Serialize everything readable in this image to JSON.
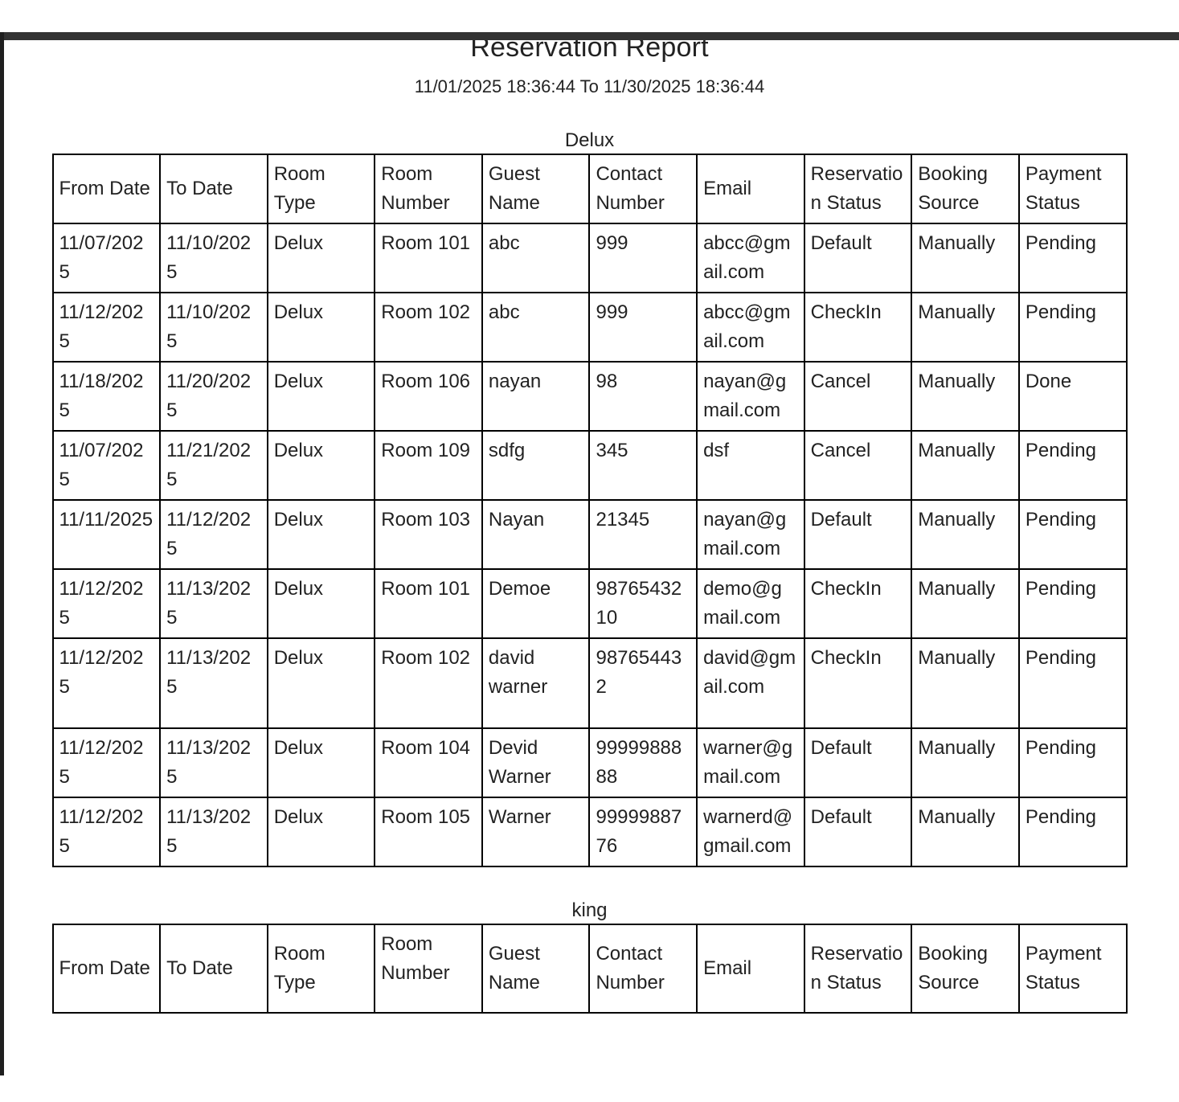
{
  "report": {
    "title": "Reservation Report",
    "date_range": "11/01/2025 18:36:44 To 11/30/2025 18:36:44"
  },
  "columns": [
    "From Date",
    "To Date",
    "Room Type",
    "Room Number",
    "Guest Name",
    "Contact Number",
    "Email",
    "Reservation Status",
    "Booking Source",
    "Payment Status"
  ],
  "sections": [
    {
      "name": "Delux",
      "rows": [
        [
          "11/07/2025",
          "11/10/2025",
          "Delux",
          "Room 101",
          "abc",
          "999",
          "abcc@gmail.com",
          "Default",
          "Manually",
          "Pending"
        ],
        [
          "11/12/2025",
          "11/10/2025",
          "Delux",
          "Room 102",
          "abc",
          "999",
          "abcc@gmail.com",
          "CheckIn",
          "Manually",
          "Pending"
        ],
        [
          "11/18/2025",
          "11/20/2025",
          "Delux",
          "Room 106",
          "nayan",
          "98",
          "nayan@gmail.com",
          "Cancel",
          "Manually",
          "Done"
        ],
        [
          "11/07/2025",
          "11/21/2025",
          "Delux",
          "Room 109",
          "sdfg",
          "345",
          "dsf",
          "Cancel",
          "Manually",
          "Pending"
        ],
        [
          "11/11/2025",
          "11/12/2025",
          "Delux",
          "Room 103",
          "Nayan",
          "21345",
          "nayan@gmail.com",
          "Default",
          "Manually",
          "Pending"
        ],
        [
          "11/12/2025",
          "11/13/2025",
          "Delux",
          "Room 101",
          "Demoe",
          "9876543210",
          "demo@gmail.com",
          "CheckIn",
          "Manually",
          "Pending"
        ],
        [
          "11/12/2025",
          "11/13/2025",
          "Delux",
          "Room 102",
          "david warner",
          "987654432",
          "david@gmail.com",
          "CheckIn",
          "Manually",
          "Pending"
        ],
        [
          "11/12/2025",
          "11/13/2025",
          "Delux",
          "Room 104",
          "Devid Warner",
          "9999988888",
          "warner@gmail.com",
          "Default",
          "Manually",
          "Pending"
        ],
        [
          "11/12/2025",
          "11/13/2025",
          "Delux",
          "Room 105",
          "Warner",
          "9999988776",
          "warnerd@gmail.com",
          "Default",
          "Manually",
          "Pending"
        ]
      ]
    },
    {
      "name": "king",
      "rows": []
    }
  ],
  "colors": {
    "text": "#222222",
    "table_border": "#000000",
    "frame_top": "#333333",
    "frame_left": "#1f1f1f"
  }
}
